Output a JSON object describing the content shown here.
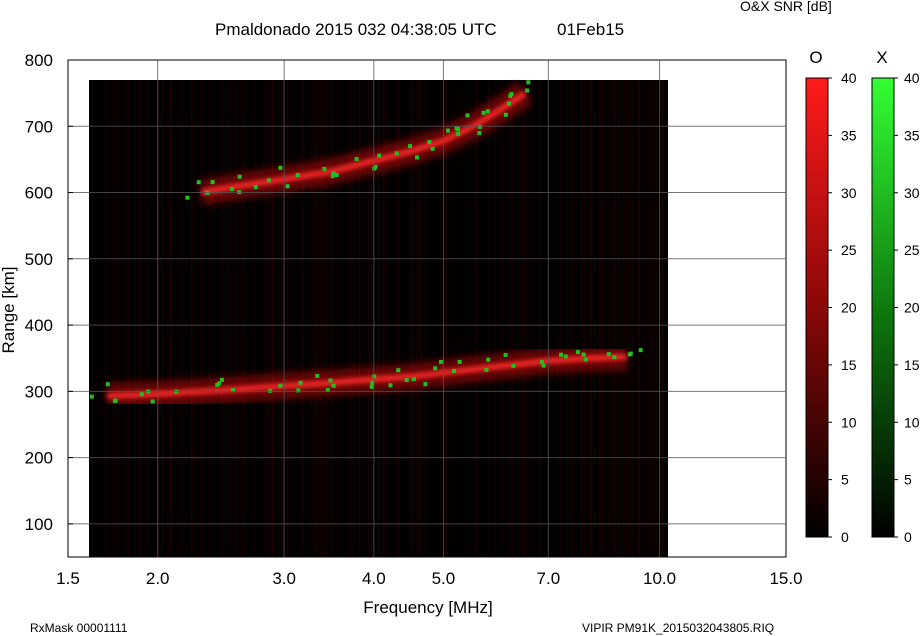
{
  "header": {
    "title": "Pmaldonado 2015 032 04:38:05 UTC",
    "date": "01Feb15",
    "colorbar_title": "O&X SNR [dB]"
  },
  "footer": {
    "rxmask": "RxMask 00001111",
    "file": "VIPIR  PM91K_2015032043805.RIQ"
  },
  "colorbars": {
    "o": {
      "label": "O",
      "ticks": [
        40,
        35,
        30,
        25,
        20,
        15,
        10,
        5,
        0
      ],
      "color_top": "#ff2020",
      "color_bottom": "#000000"
    },
    "x": {
      "label": "X",
      "ticks": [
        40,
        35,
        30,
        25,
        20,
        15,
        10,
        5,
        0
      ],
      "color_top": "#30ff30",
      "color_bottom": "#000000"
    }
  },
  "colors": {
    "o_mode": "#e01010",
    "x_mode": "#20c020",
    "background": "#000000"
  },
  "chart_data": {
    "type": "heatmap",
    "title": "Pmaldonado 2015 032 04:38:05 UTC",
    "xlabel": "Frequency [MHz]",
    "ylabel": "Range [km]",
    "x_scale": "log",
    "xlim": [
      1.5,
      15.0
    ],
    "ylim": [
      50,
      800
    ],
    "x_ticks": [
      1.5,
      2.0,
      3.0,
      4.0,
      5.0,
      7.0,
      10.0,
      15.0
    ],
    "x_tick_labels": [
      "1.5",
      "2.0",
      "3.0",
      "4.0",
      "5.0",
      "7.0",
      "10.0",
      "15.0"
    ],
    "y_ticks": [
      100,
      200,
      300,
      400,
      500,
      600,
      700,
      800
    ],
    "grid": true,
    "colorbar_range_db": [
      0,
      40
    ],
    "traces": [
      {
        "name": "O",
        "points": [
          [
            1.7,
            293
          ],
          [
            2.0,
            296
          ],
          [
            2.5,
            302
          ],
          [
            3.0,
            308
          ],
          [
            3.5,
            313
          ],
          [
            4.0,
            318
          ],
          [
            4.5,
            322
          ],
          [
            5.0,
            328
          ],
          [
            6.0,
            338
          ],
          [
            7.0,
            346
          ],
          [
            8.0,
            350
          ],
          [
            9.0,
            352
          ]
        ]
      },
      {
        "name": "O",
        "points": [
          [
            2.3,
            600
          ],
          [
            2.6,
            610
          ],
          [
            3.0,
            620
          ],
          [
            3.5,
            632
          ],
          [
            4.0,
            648
          ],
          [
            4.5,
            662
          ],
          [
            5.0,
            678
          ],
          [
            5.5,
            700
          ],
          [
            6.0,
            725
          ],
          [
            6.5,
            750
          ]
        ]
      }
    ]
  }
}
